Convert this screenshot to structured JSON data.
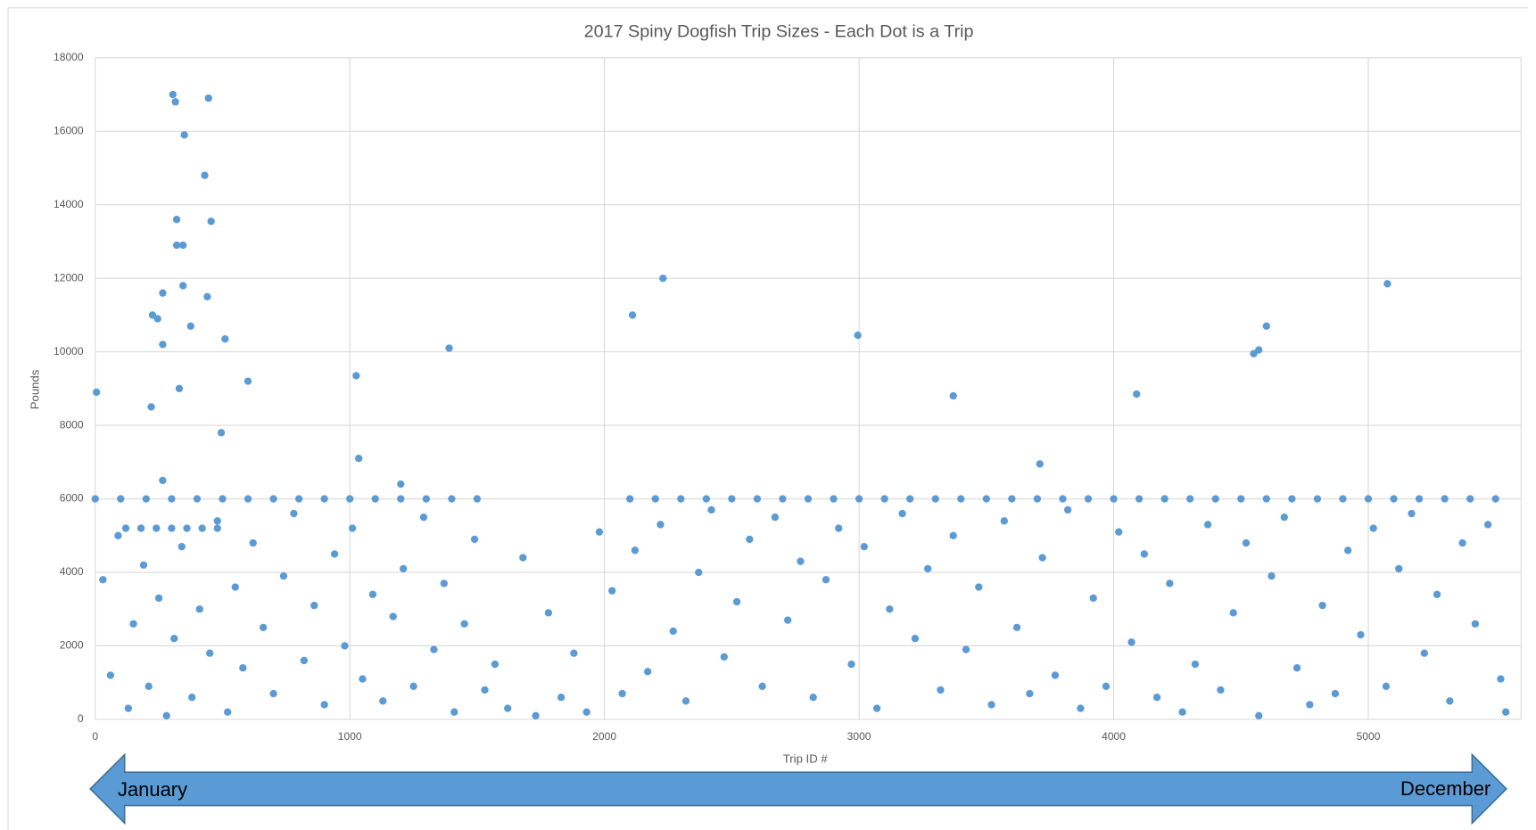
{
  "chart_data": {
    "type": "scatter",
    "title": "2017 Spiny Dogfish Trip Sizes - Each Dot is a Trip",
    "x_label": "Trip ID #",
    "y_label": "Pounds",
    "annotations": [
      "January",
      "December"
    ],
    "color": "#5b9bd5",
    "grid": true,
    "xlim": [
      0,
      5600
    ],
    "ylim": [
      0,
      18000
    ],
    "xticks": [
      0,
      1000,
      2000,
      3000,
      4000,
      5000
    ],
    "yticks": [
      0,
      2000,
      4000,
      6000,
      8000,
      10000,
      12000,
      14000,
      16000,
      18000
    ],
    "x": [
      5,
      220,
      225,
      245,
      265,
      265,
      265,
      305,
      315,
      320,
      320,
      330,
      345,
      345,
      350,
      375,
      430,
      440,
      445,
      455,
      495,
      510,
      600,
      1025,
      1035,
      1200,
      1390,
      2110,
      2230,
      2995,
      3370,
      3710,
      4090,
      4550,
      4570,
      4600,
      5075,
      0,
      100,
      200,
      300,
      400,
      500,
      600,
      700,
      800,
      900,
      1000,
      1100,
      1200,
      1300,
      1400,
      1500,
      2100,
      2200,
      2300,
      2400,
      2500,
      2600,
      2700,
      2800,
      2900,
      3000,
      3100,
      3200,
      3300,
      3400,
      3500,
      3600,
      3700,
      3800,
      3900,
      4000,
      4100,
      4200,
      4300,
      4400,
      4500,
      4600,
      4700,
      4800,
      4900,
      5000,
      5100,
      5200,
      5300,
      5400,
      5500,
      120,
      180,
      240,
      300,
      360,
      420,
      480,
      30,
      60,
      90,
      130,
      150,
      190,
      210,
      250,
      280,
      310,
      340,
      380,
      410,
      450,
      480,
      520,
      550,
      580,
      620,
      660,
      700,
      740,
      780,
      820,
      860,
      900,
      940,
      980,
      1010,
      1050,
      1090,
      1130,
      1170,
      1210,
      1250,
      1290,
      1330,
      1370,
      1410,
      1450,
      1490,
      1530,
      1570,
      1620,
      1680,
      1730,
      1780,
      1830,
      1880,
      1930,
      1980,
      2030,
      2070,
      2120,
      2170,
      2220,
      2270,
      2320,
      2370,
      2420,
      2470,
      2520,
      2570,
      2620,
      2670,
      2720,
      2770,
      2820,
      2870,
      2920,
      2970,
      3020,
      3070,
      3120,
      3170,
      3220,
      3270,
      3320,
      3370,
      3420,
      3470,
      3520,
      3570,
      3620,
      3670,
      3720,
      3770,
      3820,
      3870,
      3920,
      3970,
      4020,
      4070,
      4120,
      4170,
      4220,
      4270,
      4320,
      4370,
      4420,
      4470,
      4520,
      4570,
      4620,
      4670,
      4720,
      4770,
      4820,
      4870,
      4920,
      4970,
      5020,
      5070,
      5120,
      5170,
      5220,
      5270,
      5320,
      5370,
      5420,
      5470,
      5520,
      5540
    ],
    "values": [
      8900,
      8500,
      11000,
      10900,
      11600,
      10200,
      6500,
      17000,
      16800,
      13600,
      12900,
      9000,
      12900,
      11800,
      15900,
      10700,
      14800,
      11500,
      16900,
      13550,
      7800,
      10350,
      9200,
      9350,
      7100,
      6400,
      10100,
      11000,
      12000,
      10450,
      8800,
      6950,
      8850,
      9950,
      10050,
      10700,
      11850,
      6000,
      6000,
      6000,
      6000,
      6000,
      6000,
      6000,
      6000,
      6000,
      6000,
      6000,
      6000,
      6000,
      6000,
      6000,
      6000,
      6000,
      6000,
      6000,
      6000,
      6000,
      6000,
      6000,
      6000,
      6000,
      6000,
      6000,
      6000,
      6000,
      6000,
      6000,
      6000,
      6000,
      6000,
      6000,
      6000,
      6000,
      6000,
      6000,
      6000,
      6000,
      6000,
      6000,
      6000,
      6000,
      6000,
      6000,
      6000,
      6000,
      6000,
      6000,
      5200,
      5200,
      5200,
      5200,
      5200,
      5200,
      5200,
      3800,
      1200,
      5000,
      300,
      2600,
      4200,
      900,
      3300,
      100,
      2200,
      4700,
      600,
      3000,
      1800,
      5400,
      200,
      3600,
      1400,
      4800,
      2500,
      700,
      3900,
      5600,
      1600,
      3100,
      400,
      4500,
      2000,
      5200,
      1100,
      3400,
      500,
      2800,
      4100,
      900,
      5500,
      1900,
      3700,
      200,
      2600,
      4900,
      800,
      1500,
      300,
      4400,
      100,
      2900,
      600,
      1800,
      200,
      5100,
      3500,
      700,
      4600,
      1300,
      5300,
      2400,
      500,
      4000,
      5700,
      1700,
      3200,
      4900,
      900,
      5500,
      2700,
      4300,
      600,
      3800,
      5200,
      1500,
      4700,
      300,
      3000,
      5600,
      2200,
      4100,
      800,
      5000,
      1900,
      3600,
      400,
      5400,
      2500,
      700,
      4400,
      1200,
      5700,
      300,
      3300,
      900,
      5100,
      2100,
      4500,
      600,
      3700,
      200,
      1500,
      5300,
      800,
      2900,
      4800,
      100,
      3900,
      5500,
      1400,
      400,
      3100,
      700,
      4600,
      2300,
      5200,
      900,
      4100,
      5600,
      1800,
      3400,
      500,
      4800,
      2600,
      5300,
      1100,
      200
    ]
  }
}
